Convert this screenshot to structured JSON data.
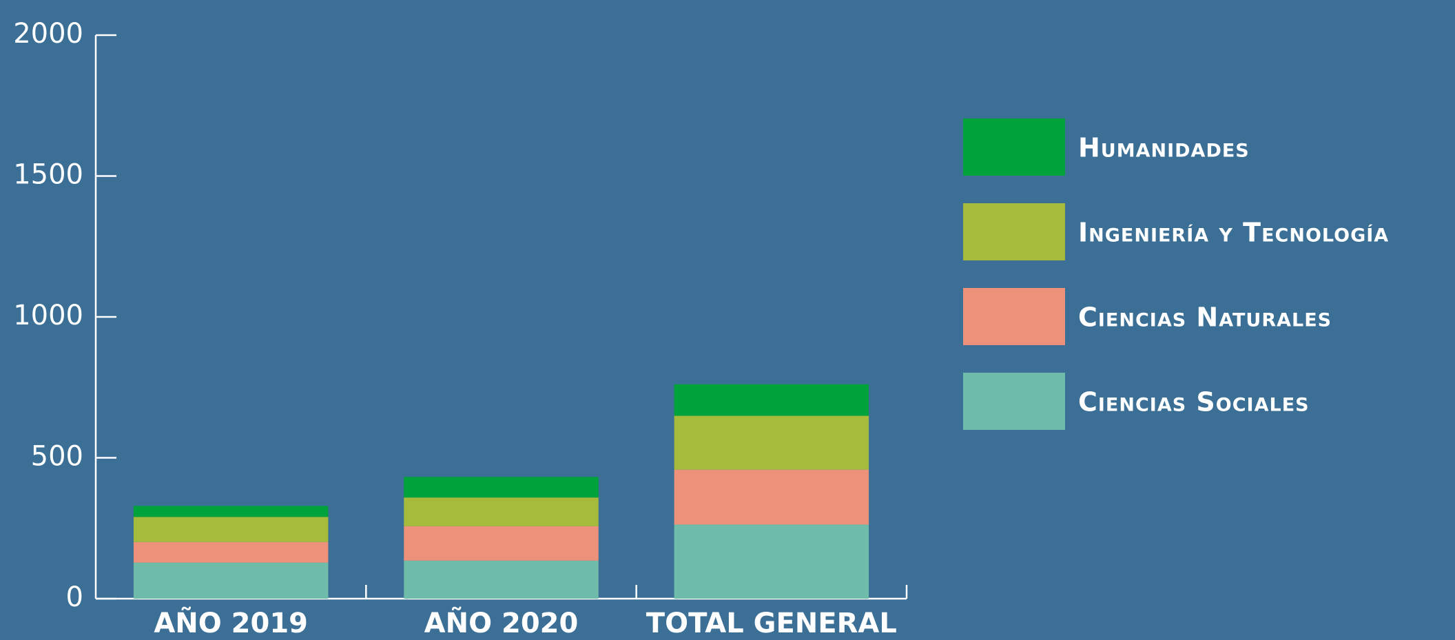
{
  "chart_data": {
    "type": "stacked_bar",
    "categories": [
      "AÑO 2019",
      "AÑO 2020",
      "TOTAL GENERAL"
    ],
    "series": [
      {
        "name": "Ciencias Sociales",
        "color": "#6fbcab",
        "values": [
          128,
          135,
          263
        ]
      },
      {
        "name": "Ciencias Naturales",
        "color": "#ee917a",
        "values": [
          73,
          122,
          195
        ]
      },
      {
        "name": "Ingeniería y Tecnología",
        "color": "#a6bb3c",
        "values": [
          89,
          102,
          191
        ]
      },
      {
        "name": "Humanidades",
        "color": "#00a33b",
        "values": [
          39,
          73,
          112
        ]
      }
    ],
    "ylim": [
      0,
      2000
    ],
    "yticks": [
      0,
      500,
      1000,
      1500,
      2000
    ],
    "grid": false,
    "legend": "right"
  }
}
